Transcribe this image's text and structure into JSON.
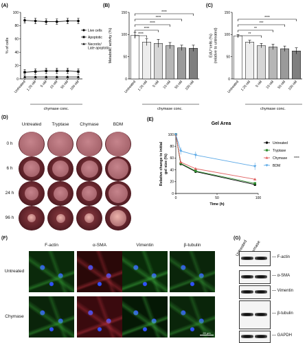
{
  "panels": {
    "A": "(A)",
    "B": "(B)",
    "C": "(C)",
    "D": "(D)",
    "E": "(E)",
    "F": "(F)",
    "G": "(G)"
  },
  "chart_data": [
    {
      "id": "A",
      "type": "line",
      "xlabel": "chymase conc.",
      "ylabel": "% of cells",
      "categories": [
        "Untreated",
        "1.25 nM",
        "5 nM",
        "10 nM",
        "50 nM",
        "100 nM"
      ],
      "ylim": [
        0,
        100
      ],
      "yticks": [
        "0",
        "20",
        "40",
        "60",
        "80",
        "100"
      ],
      "series": [
        {
          "name": "Live cells",
          "values": [
            88,
            87,
            86,
            86,
            87,
            87
          ],
          "err": [
            4,
            4,
            4,
            4,
            4,
            4
          ]
        },
        {
          "name": "Apoptotic",
          "values": [
            10,
            11,
            12,
            12,
            12,
            11
          ],
          "err": [
            4,
            4,
            4,
            4,
            4,
            4
          ]
        },
        {
          "name": "Necrotic/ Late apoptotic",
          "values": [
            3,
            3,
            3,
            3,
            3,
            3
          ],
          "err": [
            1,
            1,
            1,
            1,
            1,
            1
          ]
        }
      ]
    },
    {
      "id": "B",
      "type": "bar",
      "xlabel": "chymase conc.",
      "ylabel": "Metabolic activity (%)",
      "categories": [
        "Untreated",
        "1.25 nM",
        "5 nM",
        "10 nM",
        "50 nM",
        "100 nM"
      ],
      "values": [
        98,
        83,
        80,
        75,
        70,
        69
      ],
      "err": [
        7,
        8,
        9,
        7,
        6,
        7
      ],
      "ylim": [
        0,
        150
      ],
      "yticks": [
        "0",
        "50",
        "100",
        "150"
      ],
      "significance": [
        "****",
        "****",
        "****",
        "****",
        "****"
      ]
    },
    {
      "id": "C",
      "type": "bar",
      "xlabel": "chymase conc.",
      "ylabel": "EdU⁺cells (%)\n(relative to untreated)",
      "categories": [
        "Untreated",
        "1.25 nM",
        "5 nM",
        "10 nM",
        "50 nM",
        "100 nM"
      ],
      "values": [
        97,
        83,
        75,
        72,
        68,
        63
      ],
      "err": [
        3,
        4,
        5,
        6,
        6,
        7
      ],
      "ylim": [
        0,
        150
      ],
      "yticks": [
        "0",
        "50",
        "100",
        "150"
      ],
      "significance": [
        "**",
        "**",
        "***",
        "****"
      ]
    },
    {
      "id": "E",
      "type": "line",
      "title": "Gel Area",
      "xlabel": "Time (h)",
      "ylabel": "Relative change to initial\ngel size (%)",
      "x": [
        0,
        6,
        24,
        96
      ],
      "xlim": [
        0,
        100
      ],
      "ylim": [
        0,
        100
      ],
      "xticks": [
        "0",
        "50",
        "100"
      ],
      "yticks": [
        "0",
        "20",
        "40",
        "60",
        "80",
        "100"
      ],
      "series": [
        {
          "name": "Untreated",
          "values": [
            100,
            50,
            37,
            15
          ],
          "color": "#000000"
        },
        {
          "name": "Tryptase",
          "values": [
            100,
            51,
            38,
            17
          ],
          "color": "#2e8b2e"
        },
        {
          "name": "Chymase",
          "values": [
            100,
            53,
            42,
            24
          ],
          "color": "#e06060"
        },
        {
          "name": "BDM",
          "values": [
            100,
            72,
            65,
            46
          ],
          "color": "#5aa8e6"
        }
      ],
      "significance": "****"
    }
  ],
  "gel": {
    "columns": [
      "Untreated",
      "Tryptase",
      "Chymase",
      "BDM"
    ],
    "rows": [
      "0 h",
      "6 h",
      "24 h",
      "96 h"
    ]
  },
  "micro": {
    "columns": [
      "F-actin",
      "α-SMA",
      "Vimentin",
      "β-tubulin"
    ],
    "rows": [
      "Untreated",
      "Chymase"
    ],
    "scale": "20 μm"
  },
  "blot": {
    "lanes": [
      "Untreated",
      "Chymase"
    ],
    "labels": [
      "F-actin",
      "α-SMA",
      "Vimentin",
      "β-tubulin",
      "GAPDH"
    ]
  }
}
